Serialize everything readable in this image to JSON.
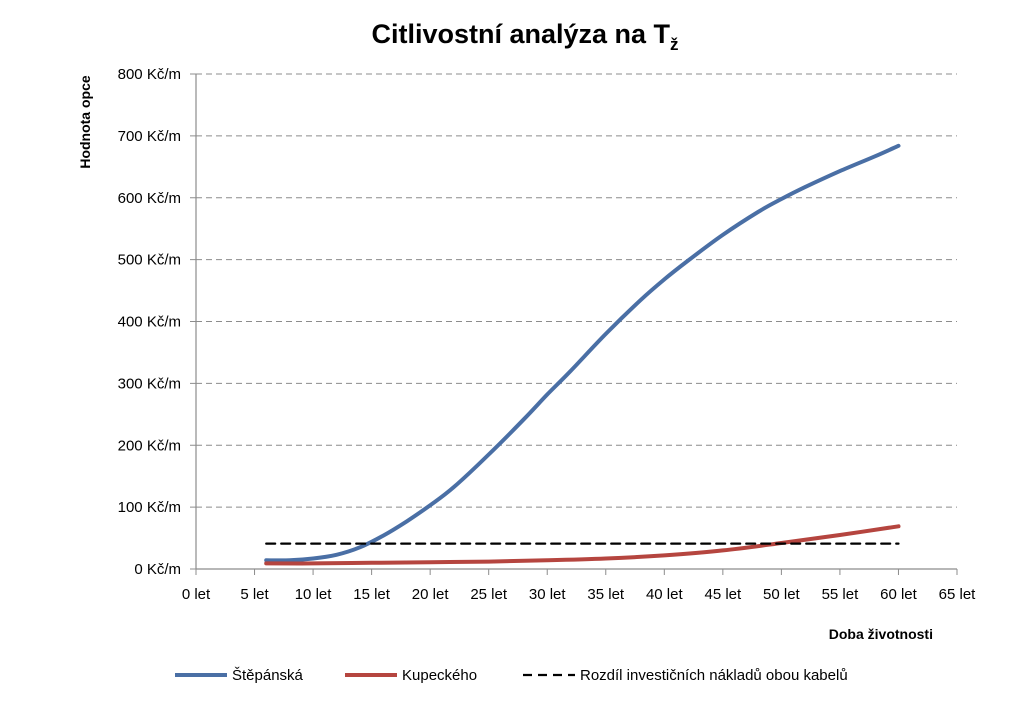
{
  "chart_data": {
    "type": "line",
    "title": "Citlivostní analýza na T",
    "title_subscript": "ž",
    "xlabel": "Doba životnosti",
    "ylabel": "Hodnota opce",
    "xlim": [
      0,
      65
    ],
    "ylim": [
      0,
      800
    ],
    "x_ticks": [
      0,
      5,
      10,
      15,
      20,
      25,
      30,
      35,
      40,
      45,
      50,
      55,
      60,
      65
    ],
    "x_tick_labels": [
      "0 let",
      "5 let",
      "10 let",
      "15 let",
      "20 let",
      "25 let",
      "30 let",
      "35 let",
      "40 let",
      "45 let",
      "50 let",
      "55 let",
      "60 let",
      "65 let"
    ],
    "y_ticks": [
      0,
      100,
      200,
      300,
      400,
      500,
      600,
      700,
      800
    ],
    "y_tick_labels": [
      "0 Kč/m",
      "100 Kč/m",
      "200 Kč/m",
      "300 Kč/m",
      "400 Kč/m",
      "500 Kč/m",
      "600 Kč/m",
      "700 Kč/m",
      "800 Kč/m"
    ],
    "grid": "horizontal dashed",
    "legend_position": "bottom",
    "series": [
      {
        "name": "Štěpánská",
        "color": "#4a6fa5",
        "style": "solid",
        "x": [
          6,
          8,
          10,
          12,
          14,
          16,
          18,
          20,
          22,
          25,
          28,
          30,
          32,
          35,
          38,
          40,
          42,
          45,
          48,
          50,
          52,
          55,
          58,
          60
        ],
        "y": [
          14,
          14,
          17,
          23,
          35,
          54,
          77,
          103,
          132,
          185,
          242,
          282,
          320,
          380,
          435,
          468,
          498,
          540,
          577,
          598,
          617,
          643,
          667,
          684
        ]
      },
      {
        "name": "Kupeckého",
        "color": "#b5453f",
        "style": "solid",
        "x": [
          6,
          10,
          15,
          20,
          25,
          30,
          35,
          40,
          45,
          50,
          55,
          60
        ],
        "y": [
          9,
          9,
          10,
          11,
          12,
          14,
          17,
          22,
          30,
          42,
          55,
          69
        ]
      },
      {
        "name": "Rozdíl investičních nákladů obou kabelů",
        "color": "#000000",
        "style": "dashed",
        "x": [
          6,
          60
        ],
        "y": [
          41,
          41
        ]
      }
    ]
  }
}
